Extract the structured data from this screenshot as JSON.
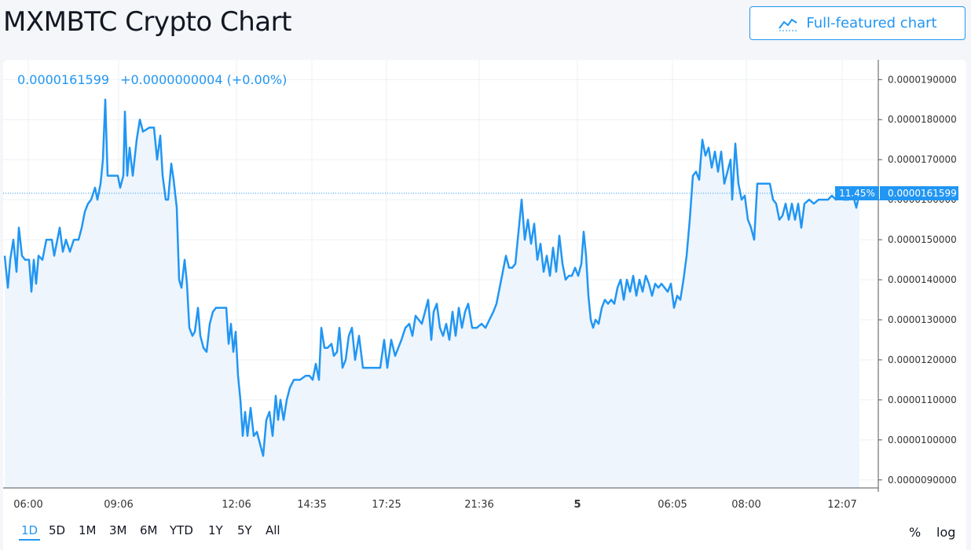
{
  "header": {
    "title": "MXMBTC Crypto Chart",
    "button_label": "Full-featured chart",
    "button_icon": "chart-line-icon"
  },
  "legend": {
    "price": "0.0000161599",
    "change": "+0.0000000004",
    "change_pct": "(+0.00%)"
  },
  "price_tag": {
    "percent": "11.45%",
    "value": "0.0000161599"
  },
  "toolbar": {
    "ranges": [
      "1D",
      "5D",
      "1M",
      "3M",
      "6M",
      "YTD",
      "1Y",
      "5Y",
      "All"
    ],
    "active_range": "1D",
    "percent_label": "%",
    "log_label": "log"
  },
  "colors": {
    "line": "#2196f3",
    "fill": "#eef5fd",
    "accent": "#2196f3"
  },
  "chart_data": {
    "type": "area",
    "y_ticks": [
      "0.0000090000",
      "0.0000100000",
      "0.0000110000",
      "0.0000120000",
      "0.0000130000",
      "0.0000140000",
      "0.0000150000",
      "0.0000160000",
      "0.0000170000",
      "0.0000180000",
      "0.0000190000"
    ],
    "x_ticks": [
      {
        "label": "06:00",
        "t": 32
      },
      {
        "label": "09:06",
        "t": 147
      },
      {
        "label": "12:06",
        "t": 297
      },
      {
        "label": "14:35",
        "t": 393
      },
      {
        "label": "17:25",
        "t": 488
      },
      {
        "label": "21:36",
        "t": 606
      },
      {
        "label": "5",
        "t": 731,
        "bold": true
      },
      {
        "label": "06:05",
        "t": 852
      },
      {
        "label": "08:00",
        "t": 946
      },
      {
        "label": "12:07",
        "t": 1068
      }
    ],
    "ylim": [
      8.8e-06,
      1.93e-05
    ],
    "last_value": 1.61599e-05,
    "series": [
      {
        "values": [
          [
            2,
            14.6
          ],
          [
            6,
            13.8
          ],
          [
            9,
            14.5
          ],
          [
            13,
            15.0
          ],
          [
            17,
            14.2
          ],
          [
            20,
            15.3
          ],
          [
            24,
            14.6
          ],
          [
            28,
            14.5
          ],
          [
            33,
            14.5
          ],
          [
            36,
            13.7
          ],
          [
            39,
            14.5
          ],
          [
            42,
            13.9
          ],
          [
            45,
            14.6
          ],
          [
            50,
            14.5
          ],
          [
            55,
            15.0
          ],
          [
            62,
            15.0
          ],
          [
            65,
            14.6
          ],
          [
            68,
            14.9
          ],
          [
            72,
            15.3
          ],
          [
            76,
            14.7
          ],
          [
            80,
            15.0
          ],
          [
            85,
            14.7
          ],
          [
            90,
            15.0
          ],
          [
            96,
            15.0
          ],
          [
            100,
            15.3
          ],
          [
            104,
            15.7
          ],
          [
            108,
            15.9
          ],
          [
            112,
            16.0
          ],
          [
            117,
            16.3
          ],
          [
            120,
            16.0
          ],
          [
            124,
            16.4
          ],
          [
            127,
            17.0
          ],
          [
            130,
            18.5
          ],
          [
            133,
            16.6
          ],
          [
            140,
            16.6
          ],
          [
            146,
            16.6
          ],
          [
            149,
            16.3
          ],
          [
            153,
            16.6
          ],
          [
            155,
            18.2
          ],
          [
            158,
            16.6
          ],
          [
            161,
            17.3
          ],
          [
            165,
            16.6
          ],
          [
            170,
            17.5
          ],
          [
            174,
            18.0
          ],
          [
            178,
            17.7
          ],
          [
            186,
            17.8
          ],
          [
            192,
            17.8
          ],
          [
            196,
            17.0
          ],
          [
            200,
            17.6
          ],
          [
            203,
            16.6
          ],
          [
            207,
            16.0
          ],
          [
            210,
            16.0
          ],
          [
            214,
            16.9
          ],
          [
            217,
            16.5
          ],
          [
            221,
            15.8
          ],
          [
            224,
            14.0
          ],
          [
            227,
            13.8
          ],
          [
            231,
            14.5
          ],
          [
            234,
            13.9
          ],
          [
            237,
            12.8
          ],
          [
            241,
            12.6
          ],
          [
            244,
            12.7
          ],
          [
            248,
            13.3
          ],
          [
            251,
            12.6
          ],
          [
            255,
            12.3
          ],
          [
            259,
            12.2
          ],
          [
            263,
            12.9
          ],
          [
            267,
            13.2
          ],
          [
            271,
            13.3
          ],
          [
            280,
            13.3
          ],
          [
            284,
            13.3
          ],
          [
            287,
            12.4
          ],
          [
            290,
            12.9
          ],
          [
            293,
            12.2
          ],
          [
            296,
            12.7
          ],
          [
            299,
            11.6
          ],
          [
            302,
            11.0
          ],
          [
            305,
            10.1
          ],
          [
            308,
            10.7
          ],
          [
            311,
            10.1
          ],
          [
            315,
            10.8
          ],
          [
            319,
            10.1
          ],
          [
            323,
            10.2
          ],
          [
            327,
            9.9
          ],
          [
            331,
            9.6
          ],
          [
            335,
            10.5
          ],
          [
            339,
            10.7
          ],
          [
            343,
            10.1
          ],
          [
            347,
            11.1
          ],
          [
            350,
            10.5
          ],
          [
            353,
            11.0
          ],
          [
            357,
            10.5
          ],
          [
            361,
            11.0
          ],
          [
            365,
            11.3
          ],
          [
            370,
            11.5
          ],
          [
            378,
            11.5
          ],
          [
            385,
            11.6
          ],
          [
            390,
            11.6
          ],
          [
            394,
            11.5
          ],
          [
            398,
            11.9
          ],
          [
            402,
            11.5
          ],
          [
            405,
            12.8
          ],
          [
            409,
            12.3
          ],
          [
            413,
            12.3
          ],
          [
            418,
            12.4
          ],
          [
            421,
            12.1
          ],
          [
            425,
            12.2
          ],
          [
            428,
            12.8
          ],
          [
            432,
            11.8
          ],
          [
            436,
            12.0
          ],
          [
            440,
            12.6
          ],
          [
            444,
            12.8
          ],
          [
            448,
            12.0
          ],
          [
            453,
            12.6
          ],
          [
            458,
            11.8
          ],
          [
            462,
            11.8
          ],
          [
            468,
            11.8
          ],
          [
            475,
            11.8
          ],
          [
            480,
            11.8
          ],
          [
            485,
            12.5
          ],
          [
            489,
            11.8
          ],
          [
            494,
            12.5
          ],
          [
            499,
            12.1
          ],
          [
            503,
            12.3
          ],
          [
            507,
            12.5
          ],
          [
            512,
            12.8
          ],
          [
            517,
            12.9
          ],
          [
            521,
            12.6
          ],
          [
            525,
            13.1
          ],
          [
            529,
            13.0
          ],
          [
            533,
            12.9
          ],
          [
            537,
            13.2
          ],
          [
            541,
            13.5
          ],
          [
            545,
            12.5
          ],
          [
            548,
            13.2
          ],
          [
            552,
            13.4
          ],
          [
            556,
            12.8
          ],
          [
            560,
            12.6
          ],
          [
            564,
            12.9
          ],
          [
            568,
            12.5
          ],
          [
            572,
            13.2
          ],
          [
            576,
            12.6
          ],
          [
            580,
            13.3
          ],
          [
            584,
            12.8
          ],
          [
            588,
            13.2
          ],
          [
            592,
            13.4
          ],
          [
            597,
            12.8
          ],
          [
            603,
            12.8
          ],
          [
            609,
            12.9
          ],
          [
            614,
            12.8
          ],
          [
            619,
            13.0
          ],
          [
            624,
            13.2
          ],
          [
            628,
            13.4
          ],
          [
            632,
            13.8
          ],
          [
            636,
            14.2
          ],
          [
            640,
            14.6
          ],
          [
            644,
            14.3
          ],
          [
            648,
            14.3
          ],
          [
            652,
            14.4
          ],
          [
            656,
            15.2
          ],
          [
            660,
            16.0
          ],
          [
            664,
            15.0
          ],
          [
            668,
            15.5
          ],
          [
            672,
            14.9
          ],
          [
            676,
            15.4
          ],
          [
            680,
            14.5
          ],
          [
            684,
            14.9
          ],
          [
            688,
            14.2
          ],
          [
            692,
            14.6
          ],
          [
            696,
            14.1
          ],
          [
            700,
            14.8
          ],
          [
            704,
            14.2
          ],
          [
            708,
            15.1
          ],
          [
            712,
            14.4
          ],
          [
            716,
            14.0
          ],
          [
            720,
            14.1
          ],
          [
            724,
            14.1
          ],
          [
            728,
            14.3
          ],
          [
            732,
            14.1
          ],
          [
            736,
            14.4
          ],
          [
            739,
            15.2
          ],
          [
            742,
            14.6
          ],
          [
            745,
            13.6
          ],
          [
            748,
            13.0
          ],
          [
            751,
            12.8
          ],
          [
            754,
            13.0
          ],
          [
            758,
            12.9
          ],
          [
            762,
            13.3
          ],
          [
            766,
            13.5
          ],
          [
            770,
            13.4
          ],
          [
            774,
            13.5
          ],
          [
            778,
            13.4
          ],
          [
            782,
            13.8
          ],
          [
            786,
            14.0
          ],
          [
            790,
            13.5
          ],
          [
            794,
            14.0
          ],
          [
            798,
            13.7
          ],
          [
            802,
            14.1
          ],
          [
            806,
            13.6
          ],
          [
            810,
            14.0
          ],
          [
            814,
            13.7
          ],
          [
            818,
            14.1
          ],
          [
            822,
            13.9
          ],
          [
            826,
            13.6
          ],
          [
            830,
            13.9
          ],
          [
            834,
            13.8
          ],
          [
            838,
            13.9
          ],
          [
            842,
            13.8
          ],
          [
            846,
            13.7
          ],
          [
            850,
            13.9
          ],
          [
            854,
            13.3
          ],
          [
            858,
            13.6
          ],
          [
            862,
            13.5
          ],
          [
            866,
            14.0
          ],
          [
            870,
            14.6
          ],
          [
            874,
            15.5
          ],
          [
            878,
            16.6
          ],
          [
            882,
            16.7
          ],
          [
            886,
            16.5
          ],
          [
            890,
            17.5
          ],
          [
            894,
            17.1
          ],
          [
            898,
            17.3
          ],
          [
            902,
            16.8
          ],
          [
            906,
            17.2
          ],
          [
            910,
            16.7
          ],
          [
            914,
            17.2
          ],
          [
            918,
            16.4
          ],
          [
            922,
            16.7
          ],
          [
            926,
            17.0
          ],
          [
            928,
            16.0
          ],
          [
            932,
            17.4
          ],
          [
            936,
            16.4
          ],
          [
            940,
            16.0
          ],
          [
            944,
            16.1
          ],
          [
            948,
            15.5
          ],
          [
            952,
            15.3
          ],
          [
            956,
            15.0
          ],
          [
            960,
            16.4
          ],
          [
            968,
            16.4
          ],
          [
            976,
            16.4
          ],
          [
            980,
            16.0
          ],
          [
            984,
            15.9
          ],
          [
            988,
            15.5
          ],
          [
            992,
            15.6
          ],
          [
            996,
            15.9
          ],
          [
            1000,
            15.5
          ],
          [
            1004,
            15.9
          ],
          [
            1008,
            15.5
          ],
          [
            1012,
            15.9
          ],
          [
            1016,
            15.3
          ],
          [
            1020,
            15.9
          ],
          [
            1026,
            16.0
          ],
          [
            1032,
            15.9
          ],
          [
            1038,
            16.0
          ],
          [
            1045,
            16.0
          ],
          [
            1050,
            16.0
          ],
          [
            1055,
            16.1
          ],
          [
            1060,
            16.0
          ],
          [
            1065,
            16.1
          ],
          [
            1070,
            16.0
          ],
          [
            1076,
            16.0
          ],
          [
            1082,
            16.1
          ],
          [
            1086,
            15.8
          ],
          [
            1090,
            16.16
          ]
        ]
      }
    ]
  }
}
